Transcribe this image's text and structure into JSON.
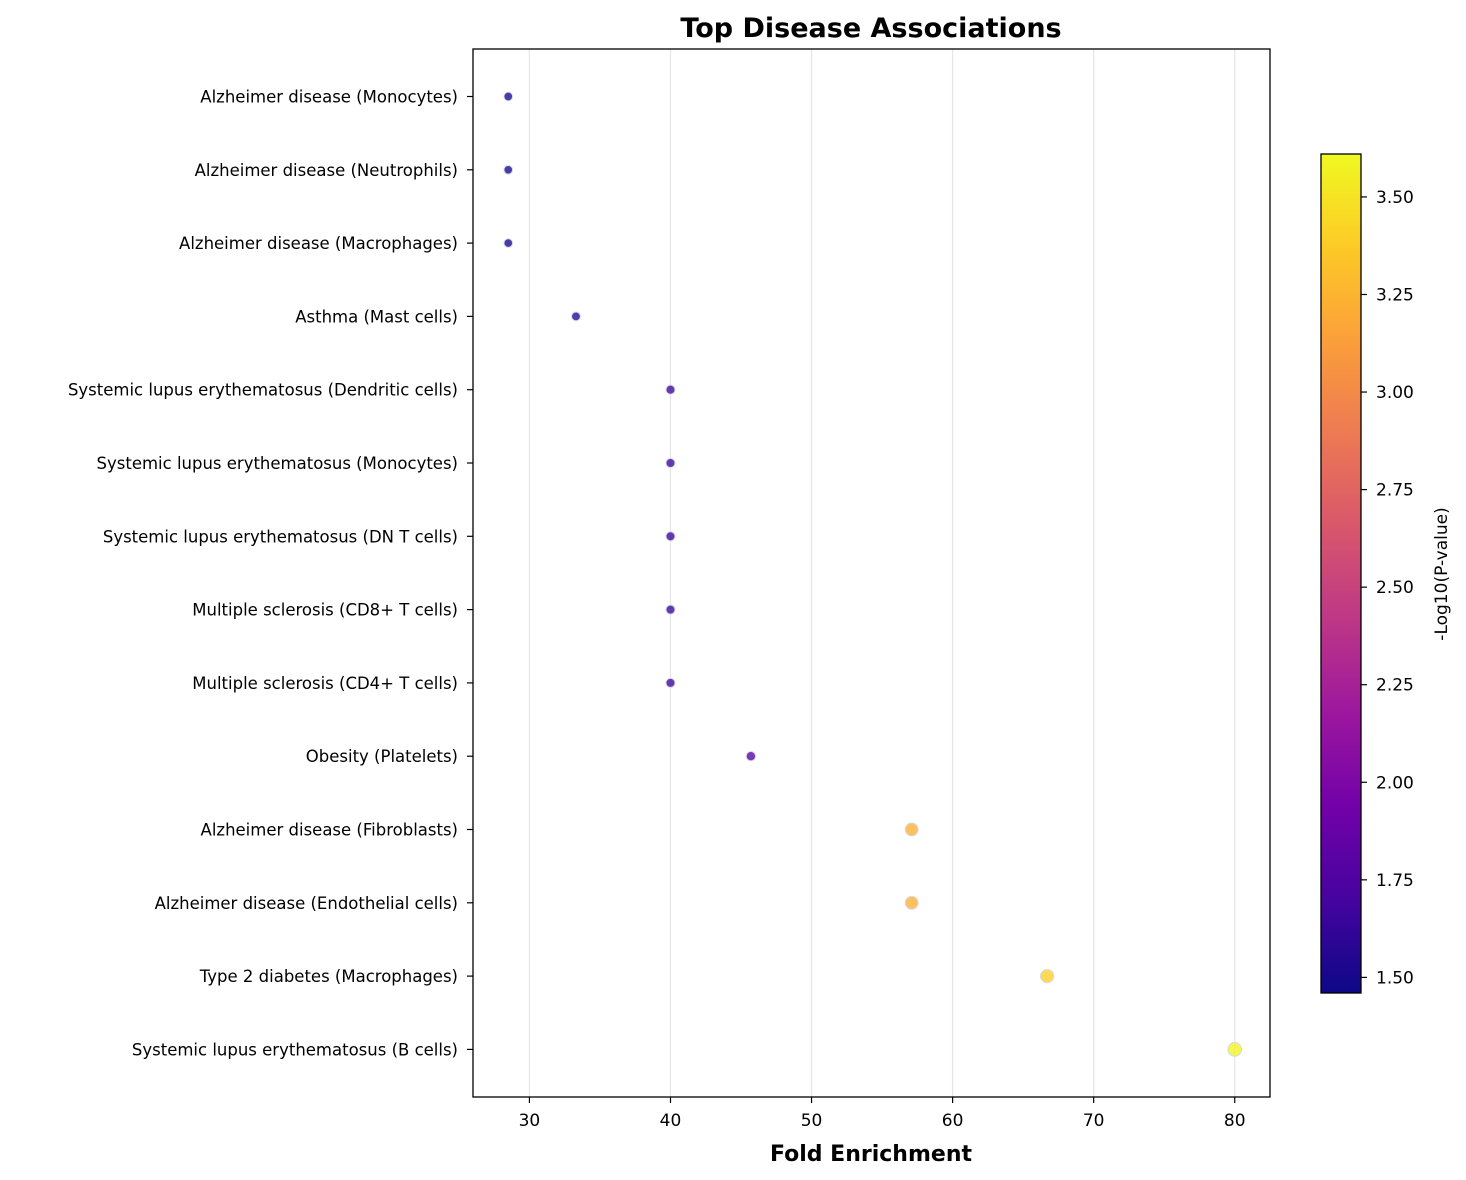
{
  "chart_data": {
    "type": "scatter",
    "title": "Top Disease Associations",
    "xlabel": "Fold Enrichment",
    "ylabel": "",
    "xlim": [
      26,
      82.5
    ],
    "xticks": [
      "30",
      "40",
      "50",
      "60",
      "70",
      "80"
    ],
    "x_tick_values": [
      30,
      40,
      50,
      60,
      70,
      80
    ],
    "grid": "vertical",
    "colorbar": {
      "label": "-Log10(P-value)",
      "range": [
        1.46,
        3.61
      ],
      "ticks": [
        "1.50",
        "1.75",
        "2.00",
        "2.25",
        "2.50",
        "2.75",
        "3.00",
        "3.25",
        "3.50"
      ],
      "tick_values": [
        1.5,
        1.75,
        2.0,
        2.25,
        2.5,
        2.75,
        3.0,
        3.25,
        3.5
      ],
      "colormap": "plasma",
      "position": "right"
    },
    "categories": [
      "Alzheimer disease (Monocytes)",
      "Alzheimer disease (Neutrophils)",
      "Alzheimer disease (Macrophages)",
      "Asthma (Mast cells)",
      "Systemic lupus erythematosus (Dendritic cells)",
      "Systemic lupus erythematosus (Monocytes)",
      "Systemic lupus erythematosus (DN T cells)",
      "Multiple sclerosis (CD8+ T cells)",
      "Multiple sclerosis (CD4+ T cells)",
      "Obesity (Platelets)",
      "Alzheimer disease (Fibroblasts)",
      "Alzheimer disease (Endothelial cells)",
      "Type 2 diabetes (Macrophages)",
      "Systemic lupus erythematosus (B cells)"
    ],
    "x": [
      28.5,
      28.5,
      28.5,
      33.3,
      40.0,
      40.0,
      40.0,
      40.0,
      40.0,
      45.7,
      57.1,
      57.1,
      66.7,
      80.0
    ],
    "neg_log10_p": [
      1.48,
      1.48,
      1.48,
      1.55,
      1.65,
      1.65,
      1.65,
      1.65,
      1.65,
      1.78,
      3.23,
      3.23,
      3.4,
      3.58
    ],
    "colors": {
      "plasma_stops": [
        "#0d0887",
        "#46039f",
        "#7201a8",
        "#9c179e",
        "#bd3786",
        "#d8576b",
        "#ed7953",
        "#fb9f3a",
        "#fdca26",
        "#f0f921"
      ],
      "axis": "#000000",
      "grid": "#e6e6e6",
      "marker_edge": "#d8d8e8"
    }
  }
}
